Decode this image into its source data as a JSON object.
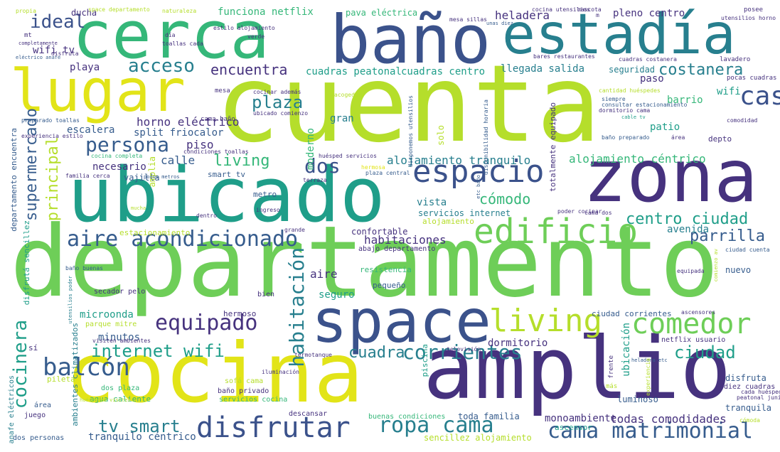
{
  "palette": {
    "dark_purple": "#46327e",
    "indigo": "#3b528b",
    "blue": "#365c8d",
    "teal": "#277f8e",
    "teal_green": "#1f9e89",
    "green": "#35b779",
    "lime": "#6ece58",
    "yellow_green": "#b5de2b",
    "yellow": "#e2e418"
  },
  "words": [
    {
      "text": "cuenta"
    },
    {
      "text": "departamento"
    },
    {
      "text": "amplio"
    },
    {
      "text": "cocina"
    },
    {
      "text": "ubicado"
    },
    {
      "text": "zona"
    },
    {
      "text": "baño"
    },
    {
      "text": "cerca"
    },
    {
      "text": "space"
    },
    {
      "text": "estadía"
    },
    {
      "text": "lugar"
    },
    {
      "text": "edificio"
    },
    {
      "text": "espacio"
    },
    {
      "text": "living"
    },
    {
      "text": "comedor"
    },
    {
      "text": "disfrutar"
    },
    {
      "text": "cama matrimonial"
    },
    {
      "text": "aire acondicionado"
    },
    {
      "text": "balcón"
    },
    {
      "text": "casa"
    },
    {
      "text": "ropa cama"
    },
    {
      "text": "equipado"
    },
    {
      "text": "persona"
    },
    {
      "text": "acceso"
    },
    {
      "text": "costanera"
    },
    {
      "text": "centro ciudad"
    },
    {
      "text": "parrilla"
    },
    {
      "text": "internet wifi"
    },
    {
      "text": "tv smart"
    },
    {
      "text": "ideal"
    },
    {
      "text": "encuentra"
    },
    {
      "text": "supermercado"
    },
    {
      "text": "habitación"
    },
    {
      "text": "cocinera"
    },
    {
      "text": "ciudad"
    },
    {
      "text": "corrientes"
    },
    {
      "text": "cuadra"
    },
    {
      "text": "dos"
    },
    {
      "text": "plaza"
    },
    {
      "text": "living"
    },
    {
      "text": "cómodo"
    },
    {
      "text": "principal"
    },
    {
      "text": "alojamiento céntrico"
    },
    {
      "text": "alojamiento tranquilo"
    },
    {
      "text": "habitaciones"
    },
    {
      "text": "todas comodidades"
    },
    {
      "text": "monoambiente"
    },
    {
      "text": "heladera"
    },
    {
      "text": "pleno centro"
    },
    {
      "text": "funciona netflix"
    },
    {
      "text": "pava eléctrica"
    },
    {
      "text": "cuadras peatonal"
    },
    {
      "text": "cuadras centro"
    },
    {
      "text": "llegada salida"
    },
    {
      "text": "horno eléctrico"
    },
    {
      "text": "split friocalor"
    },
    {
      "text": "escalera"
    },
    {
      "text": "necesario"
    },
    {
      "text": "vajilla"
    },
    {
      "text": "calle"
    },
    {
      "text": "piso"
    },
    {
      "text": "moderno"
    },
    {
      "text": "gran"
    },
    {
      "text": "solo"
    },
    {
      "text": "vista"
    },
    {
      "text": "servicios internet"
    },
    {
      "text": "microonda"
    },
    {
      "text": "minutos"
    },
    {
      "text": "ducha"
    },
    {
      "text": "hermoso"
    },
    {
      "text": "seguro"
    },
    {
      "text": "aire"
    },
    {
      "text": "confortable"
    },
    {
      "text": "avenida"
    },
    {
      "text": "dormitorio"
    },
    {
      "text": "ubicación"
    },
    {
      "text": "patio"
    },
    {
      "text": "barrio"
    },
    {
      "text": "paso"
    },
    {
      "text": "wifi"
    },
    {
      "text": "seguridad"
    },
    {
      "text": "wifi tv"
    },
    {
      "text": "playa"
    },
    {
      "text": "tranquilo céntrico"
    },
    {
      "text": "toda familia"
    },
    {
      "text": "luminoso"
    },
    {
      "text": "tranquila"
    },
    {
      "text": "nuevo"
    },
    {
      "text": "disfruta"
    },
    {
      "text": "netflix usuario"
    },
    {
      "text": "ciudad corrientes"
    },
    {
      "text": "departamento encuentra"
    },
    {
      "text": "disfrutá sencillez"
    },
    {
      "text": "ambientes climatizados"
    },
    {
      "text": "amplia"
    },
    {
      "text": "smart tv"
    },
    {
      "text": "totalmente equipado"
    },
    {
      "text": "metro"
    },
    {
      "text": "piscina"
    },
    {
      "text": "ascensor"
    },
    {
      "text": "depto"
    },
    {
      "text": "diez cuadras"
    },
    {
      "text": "sencillez alojamiento"
    },
    {
      "text": "alojamiento"
    },
    {
      "text": "estacionamiento"
    },
    {
      "text": "pequeño"
    },
    {
      "text": "resistencia"
    },
    {
      "text": "parque mitre"
    },
    {
      "text": "abajo departamento"
    },
    {
      "text": "secador pelo"
    },
    {
      "text": "bien"
    },
    {
      "text": "agua caliente"
    },
    {
      "text": "dos plaza"
    },
    {
      "text": "sofá cama"
    },
    {
      "text": "baño privado"
    },
    {
      "text": "servicios cocina"
    },
    {
      "text": "descansar"
    },
    {
      "text": "buenas condiciones"
    },
    {
      "text": "dos personas"
    },
    {
      "text": "juego"
    },
    {
      "text": "área"
    },
    {
      "text": "pileta"
    },
    {
      "text": "sí"
    },
    {
      "text": "anafe eléctricos"
    },
    {
      "text": "huéspedes visiten"
    },
    {
      "text": "iluminación"
    },
    {
      "text": "termotanque"
    },
    {
      "text": "televisión"
    },
    {
      "text": "frente"
    },
    {
      "text": "cada huésped"
    },
    {
      "text": "peatonal junín"
    },
    {
      "text": "cómoda"
    },
    {
      "text": "heladera etc"
    },
    {
      "text": "experiencia"
    },
    {
      "text": "más"
    },
    {
      "text": "ascensores"
    },
    {
      "text": "equipada"
    },
    {
      "text": "ciudad cuenta"
    },
    {
      "text": "baño buenas"
    },
    {
      "text": "utensilios poder"
    },
    {
      "text": "visiten ambientes"
    },
    {
      "text": "grande"
    },
    {
      "text": "ingreso"
    },
    {
      "text": "dentro"
    },
    {
      "text": "poder cocinar"
    },
    {
      "text": "cama dos"
    },
    {
      "text": "terraza"
    },
    {
      "text": "plaza central"
    },
    {
      "text": "etc baño"
    },
    {
      "text": "hermosa"
    },
    {
      "text": "huésped servicios"
    },
    {
      "text": "condiciones toallas"
    },
    {
      "text": "pocos metros"
    },
    {
      "text": "mucha"
    },
    {
      "text": "cocina completa"
    },
    {
      "text": "familia cerca"
    },
    {
      "text": "preparado toallas"
    },
    {
      "text": "experiencia estilo"
    },
    {
      "text": "cama baño"
    },
    {
      "text": "ubicado comienzo"
    },
    {
      "text": "cocinar además"
    },
    {
      "text": "acogedor"
    },
    {
      "text": "mesa"
    },
    {
      "text": "disponemos utensilios"
    },
    {
      "text": "disponibilidad horaria"
    },
    {
      "text": "dormitorio cama"
    },
    {
      "text": "consultar estacionamiento"
    },
    {
      "text": "siempre"
    },
    {
      "text": "cable tv"
    },
    {
      "text": "baño preparado"
    },
    {
      "text": "área"
    },
    {
      "text": "comodidad"
    },
    {
      "text": "cantidad huéspedes"
    },
    {
      "text": "pocas cuadras"
    },
    {
      "text": "lavadero"
    },
    {
      "text": "cuadras costanera"
    },
    {
      "text": "bares restaurantes"
    },
    {
      "text": "propia"
    },
    {
      "text": "space departamento"
    },
    {
      "text": "naturaleza"
    },
    {
      "text": "cocina utensilios"
    },
    {
      "text": "mascota"
    },
    {
      "text": "posee"
    },
    {
      "text": "utensilios horno"
    },
    {
      "text": "mesa sillas"
    },
    {
      "text": "unas diez"
    },
    {
      "text": "día"
    },
    {
      "text": "estilo alojamiento"
    },
    {
      "text": "verde"
    },
    {
      "text": "toallas cada"
    },
    {
      "text": "completamente"
    },
    {
      "text": "eléctrico anafe"
    },
    {
      "text": "mt"
    },
    {
      "text": "disfruta"
    },
    {
      "text": "m"
    },
    {
      "text": "comienzo av"
    }
  ]
}
